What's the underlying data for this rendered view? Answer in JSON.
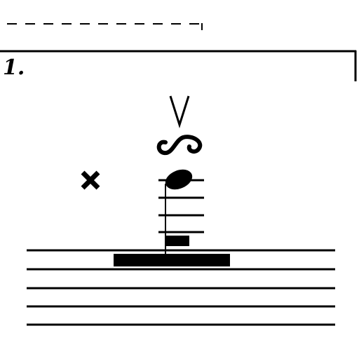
{
  "score": {
    "ending_bracket": {
      "number_label": "1."
    },
    "staff": {
      "line_count": 5,
      "ledger_line_count": 4
    },
    "note": {
      "type": "quarter",
      "stem": "down",
      "accidental": "double-sharp",
      "ornament": "turn",
      "articulation": "up-bow"
    },
    "rest": {
      "type": "multi-measure"
    },
    "colors": {
      "ink": "#000000",
      "paper": "#ffffff"
    }
  }
}
